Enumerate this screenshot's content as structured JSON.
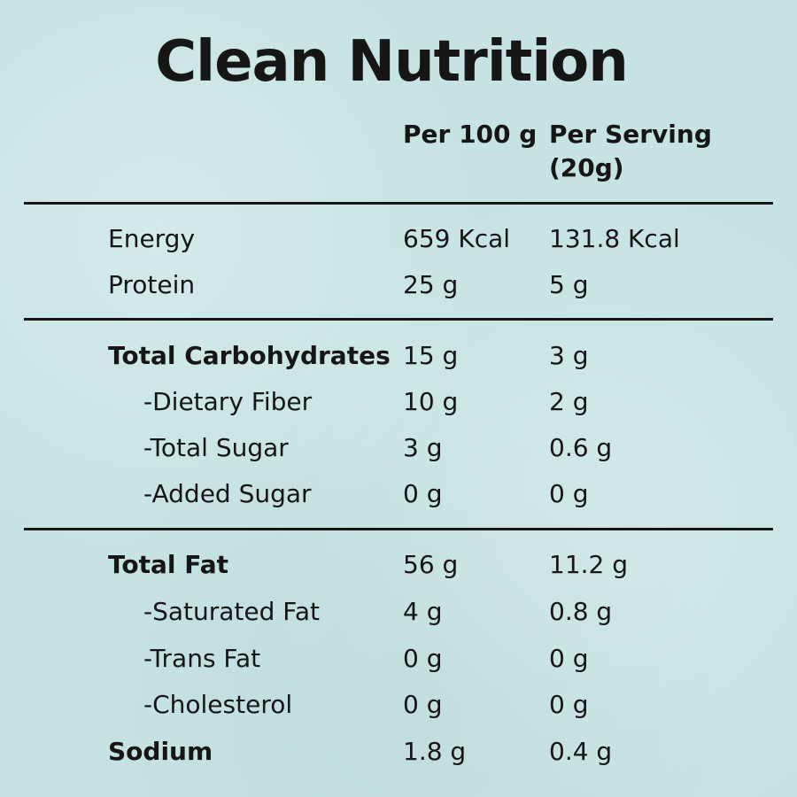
{
  "title": "Clean Nutrition",
  "columns": {
    "per100": "Per 100 g",
    "perServing": "Per Serving (20g)"
  },
  "rows": [
    {
      "label": "Energy",
      "per100": "659 Kcal",
      "perServing": "131.8 Kcal"
    },
    {
      "label": "Protein",
      "per100": "25 g",
      "perServing": "5 g"
    },
    {
      "label": "Total Carbohydrates",
      "per100": "15 g",
      "perServing": "3 g"
    },
    {
      "label": "-Dietary Fiber",
      "per100": "10 g",
      "perServing": "2 g"
    },
    {
      "label": "-Total Sugar",
      "per100": "3 g",
      "perServing": "0.6 g"
    },
    {
      "label": "-Added Sugar",
      "per100": "0 g",
      "perServing": "0 g"
    },
    {
      "label": "Total Fat",
      "per100": "56 g",
      "perServing": "11.2 g"
    },
    {
      "label": "-Saturated Fat",
      "per100": "4 g",
      "perServing": "0.8 g"
    },
    {
      "label": "-Trans Fat",
      "per100": "0 g",
      "perServing": "0 g"
    },
    {
      "label": "-Cholesterol",
      "per100": "0 g",
      "perServing": "0 g"
    },
    {
      "label": "Sodium",
      "per100": "1.8 g",
      "perServing": "0.4 g"
    }
  ]
}
